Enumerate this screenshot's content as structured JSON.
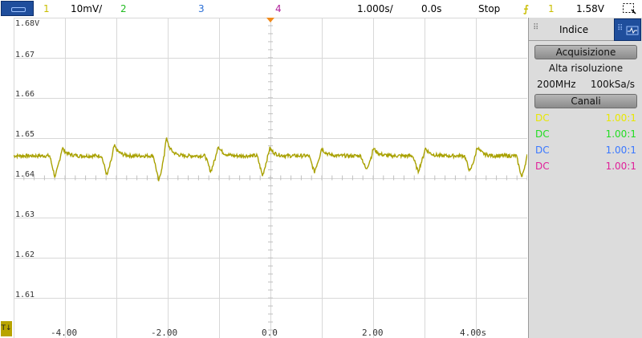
{
  "top_bar": {
    "ch1_num": "1",
    "ch1_scale": "10mV/",
    "ch2_num": "2",
    "ch3_num": "3",
    "ch4_num": "4",
    "timebase": "1.000s/",
    "delay": "0.0s",
    "run_state": "Stop",
    "trigger_source": "1",
    "trigger_level": "1.58V"
  },
  "panel": {
    "tab_label": "Indice",
    "acq_header": "Acquisizione",
    "acq_mode": "Alta risoluzione",
    "sample_rate_label": "200MHz",
    "sample_rate_value": "100kSa/s",
    "channels_header": "Canali",
    "channels": [
      {
        "coupling": "DC",
        "probe": "1.00:1",
        "color": "#e8e800"
      },
      {
        "coupling": "DC",
        "probe": "1.00:1",
        "color": "#22dd22"
      },
      {
        "coupling": "DC",
        "probe": "1.00:1",
        "color": "#3a78ff"
      },
      {
        "coupling": "DC",
        "probe": "1.00:1",
        "color": "#e0209a"
      }
    ]
  },
  "trigger_marker": "T↓",
  "colors": {
    "ch1": "#bdb300",
    "ch2": "#22bb22",
    "ch3": "#2a6fd6",
    "ch4": "#b0209a",
    "grid": "#d8d8d8",
    "trace": "#a9a100"
  },
  "chart_data": {
    "type": "line",
    "y_tick_labels": [
      "1.68V",
      "1.67",
      "1.66",
      "1.65",
      "1.64",
      "1.63",
      "1.62",
      "1.61"
    ],
    "x_tick_labels": [
      "-4.00",
      "-2.00",
      "0.0",
      "2.00",
      "4.00s"
    ],
    "xlim": [
      -5.4,
      5.0
    ],
    "ylim": [
      1.602,
      1.682
    ],
    "baseline": 1.6475,
    "events": [
      {
        "t": -4.45,
        "dip": 1.642,
        "peak": 1.6505
      },
      {
        "t": -3.4,
        "dip": 1.6425,
        "peak": 1.6515
      },
      {
        "t": -2.35,
        "dip": 1.641,
        "peak": 1.6545
      },
      {
        "t": -1.3,
        "dip": 1.6435,
        "peak": 1.6515
      },
      {
        "t": -0.25,
        "dip": 1.6425,
        "peak": 1.6505
      },
      {
        "t": 0.8,
        "dip": 1.6435,
        "peak": 1.6505
      },
      {
        "t": 1.85,
        "dip": 1.644,
        "peak": 1.6505
      },
      {
        "t": 2.9,
        "dip": 1.6435,
        "peak": 1.6505
      },
      {
        "t": 3.95,
        "dip": 1.6435,
        "peak": 1.651
      },
      {
        "t": 5.0,
        "dip": 1.642,
        "peak": 1.65
      }
    ]
  }
}
